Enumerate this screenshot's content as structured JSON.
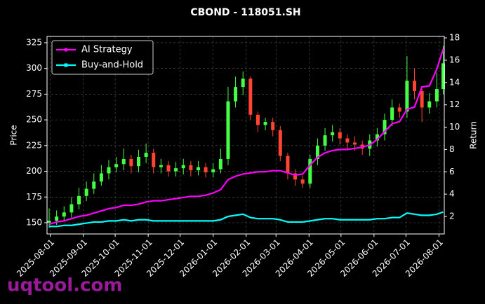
{
  "chart_data": {
    "type": "candlestick",
    "title": "CBOND - 118051.SH",
    "ylabel": "Price",
    "y2label": "Return",
    "x": [
      "2025-07-31",
      "2025-08-07",
      "2025-08-14",
      "2025-08-21",
      "2025-08-28",
      "2025-09-04",
      "2025-09-11",
      "2025-09-18",
      "2025-09-25",
      "2025-10-02",
      "2025-10-09",
      "2025-10-16",
      "2025-10-23",
      "2025-10-30",
      "2025-11-06",
      "2025-11-13",
      "2025-11-20",
      "2025-11-27",
      "2025-12-04",
      "2025-12-11",
      "2025-12-18",
      "2025-12-25",
      "2026-01-01",
      "2026-01-08",
      "2026-01-15",
      "2026-01-22",
      "2026-01-29",
      "2026-02-05",
      "2026-02-12",
      "2026-02-19",
      "2026-02-26",
      "2026-03-05",
      "2026-03-12",
      "2026-03-19",
      "2026-03-26",
      "2026-04-02",
      "2026-04-09",
      "2026-04-16",
      "2026-04-23",
      "2026-04-30",
      "2026-05-07",
      "2026-05-14",
      "2026-05-21",
      "2026-05-28",
      "2026-06-04",
      "2026-06-11",
      "2026-06-18",
      "2026-06-25",
      "2026-07-02",
      "2026-07-09",
      "2026-07-16",
      "2026-07-23",
      "2026-07-30",
      "2026-08-05"
    ],
    "open": [
      150,
      152,
      156,
      160,
      168,
      176,
      183,
      190,
      198,
      204,
      207,
      212,
      205,
      214,
      218,
      204,
      206,
      200,
      203,
      206,
      201,
      204,
      199,
      202,
      212,
      268,
      282,
      290,
      255,
      245,
      248,
      240,
      215,
      198,
      192,
      188,
      212,
      225,
      235,
      238,
      232,
      228,
      226,
      222,
      230,
      236,
      250,
      262,
      258,
      288,
      278,
      262,
      268,
      280
    ],
    "high": [
      164,
      162,
      166,
      175,
      184,
      190,
      198,
      206,
      211,
      214,
      222,
      216,
      221,
      227,
      222,
      212,
      210,
      209,
      212,
      210,
      210,
      208,
      208,
      222,
      282,
      292,
      297,
      292,
      258,
      252,
      252,
      244,
      218,
      202,
      196,
      216,
      232,
      242,
      245,
      242,
      236,
      234,
      230,
      236,
      242,
      256,
      270,
      266,
      312,
      300,
      282,
      276,
      296,
      322
    ],
    "low": [
      145,
      148,
      151,
      155,
      163,
      171,
      178,
      186,
      192,
      199,
      201,
      198,
      199,
      208,
      198,
      198,
      195,
      195,
      197,
      195,
      196,
      194,
      194,
      198,
      206,
      262,
      274,
      250,
      238,
      240,
      234,
      210,
      192,
      186,
      184,
      184,
      206,
      220,
      229,
      226,
      222,
      220,
      216,
      215,
      224,
      230,
      244,
      252,
      252,
      270,
      248,
      256,
      262,
      275
    ],
    "close": [
      152,
      156,
      160,
      168,
      176,
      183,
      190,
      198,
      204,
      207,
      212,
      205,
      214,
      218,
      204,
      206,
      200,
      203,
      206,
      201,
      204,
      199,
      202,
      212,
      268,
      282,
      290,
      255,
      245,
      248,
      240,
      215,
      198,
      192,
      188,
      212,
      225,
      235,
      238,
      232,
      228,
      226,
      222,
      230,
      236,
      250,
      262,
      258,
      288,
      278,
      262,
      268,
      280,
      305
    ],
    "up_color": "#44ff44",
    "down_color": "#ff4433",
    "series": [
      {
        "name": "AI Strategy",
        "color": "#ff00ff",
        "axis": "y2",
        "marker": "circle",
        "values": [
          1.3,
          1.5,
          1.6,
          1.8,
          2.0,
          2.1,
          2.3,
          2.5,
          2.7,
          2.8,
          3.0,
          3.0,
          3.1,
          3.3,
          3.4,
          3.4,
          3.5,
          3.6,
          3.7,
          3.8,
          3.8,
          3.9,
          4.1,
          4.4,
          5.3,
          5.6,
          5.8,
          5.9,
          6.0,
          6.0,
          6.1,
          6.1,
          5.9,
          5.7,
          5.8,
          6.6,
          7.3,
          7.7,
          7.9,
          8.0,
          8.0,
          8.1,
          8.2,
          8.4,
          8.9,
          9.6,
          10.3,
          10.5,
          11.6,
          11.8,
          13.6,
          13.7,
          15.2,
          17.0
        ]
      },
      {
        "name": "Buy-and-Hold",
        "color": "#00ffff",
        "axis": "y2",
        "marker": "square",
        "values": [
          1.1,
          1.1,
          1.2,
          1.2,
          1.3,
          1.4,
          1.5,
          1.5,
          1.6,
          1.6,
          1.7,
          1.6,
          1.7,
          1.7,
          1.6,
          1.6,
          1.6,
          1.6,
          1.6,
          1.6,
          1.6,
          1.6,
          1.6,
          1.7,
          2.0,
          2.1,
          2.2,
          1.9,
          1.8,
          1.8,
          1.8,
          1.7,
          1.5,
          1.5,
          1.5,
          1.6,
          1.7,
          1.8,
          1.8,
          1.7,
          1.7,
          1.7,
          1.7,
          1.7,
          1.8,
          1.8,
          1.9,
          1.9,
          2.3,
          2.2,
          2.1,
          2.1,
          2.2,
          2.4
        ]
      }
    ],
    "xlim": [
      "2025-07-29",
      "2026-08-06"
    ],
    "xticks": [
      "2025-08-01",
      "2025-09-01",
      "2025-10-01",
      "2025-11-01",
      "2025-12-01",
      "2026-01-01",
      "2026-02-01",
      "2026-03-01",
      "2026-04-01",
      "2026-05-01",
      "2026-06-01",
      "2026-07-01",
      "2026-08-01"
    ],
    "ylim": [
      139.1,
      331.1
    ],
    "yticks": [
      150,
      175,
      200,
      225,
      250,
      275,
      300,
      325
    ],
    "y2lim": [
      0.43,
      18.13
    ],
    "y2ticks": [
      2,
      4,
      6,
      8,
      10,
      12,
      14,
      16,
      18
    ],
    "grid": true,
    "legend": "upper left"
  },
  "watermark": "uqtool.com"
}
